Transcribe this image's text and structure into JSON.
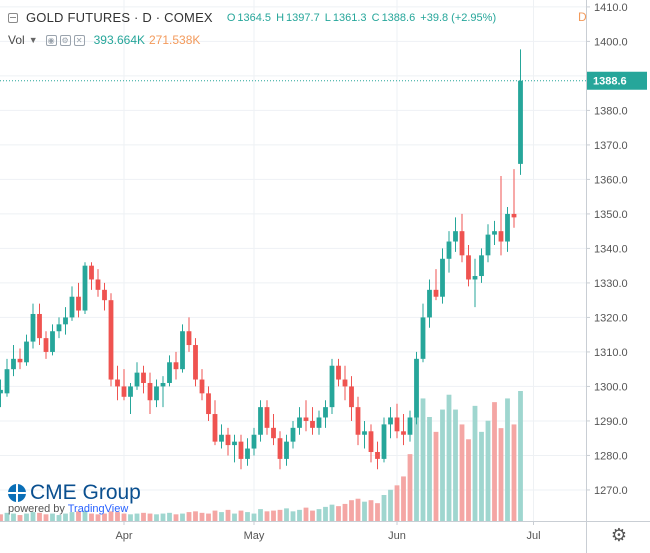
{
  "legend": {
    "symbol": "GOLD FUTURES · D · COMEX",
    "ohlc": {
      "open_label": "O",
      "open": "1364.5",
      "high_label": "H",
      "high": "1397.7",
      "low_label": "L",
      "low": "1361.3",
      "close_label": "C",
      "close": "1388.6",
      "change": "+39.8 (+2.95%)"
    },
    "volume": {
      "label": "Vol",
      "value_up": "393.664K",
      "value_down": "271.538K"
    },
    "interval_flag": "D"
  },
  "branding": {
    "logo": "CME Group",
    "powered_prefix": "powered by ",
    "powered_brand": "TradingView"
  },
  "colors": {
    "up": "#26a69a",
    "down": "#ef5350",
    "vol_up": "#9fd6cf",
    "vol_down": "#f4a6a4",
    "grid": "#eef1f4",
    "axis_text": "#555555",
    "last_price_bg": "#26a69a"
  },
  "icons": {
    "settings": "gear-icon",
    "menu": "hamburger-icon"
  },
  "chart_data": {
    "type": "candlestick",
    "x_tick_labels": [
      "Apr",
      "May",
      "Jun",
      "Jul"
    ],
    "x_ticks_at_index": [
      20,
      40,
      62,
      83
    ],
    "y_ticks": [
      1270,
      1280,
      1290,
      1300,
      1310,
      1320,
      1330,
      1340,
      1350,
      1360,
      1370,
      1380,
      1390,
      1400,
      1410
    ],
    "y_tick_labels": [
      "1270.0",
      "1280.0",
      "1290.0",
      "1300.0",
      "1310.0",
      "1320.0",
      "1330.0",
      "1340.0",
      "1350.0",
      "1360.0",
      "1370.0",
      "1380.0",
      "1390.0",
      "1400.0",
      "1410.0"
    ],
    "ylim": [
      1261,
      1412
    ],
    "last_price": 1388.6,
    "last_price_label": "1388.6",
    "series_ohlc": [
      [
        1300,
        1303,
        1296,
        1298
      ],
      [
        1298,
        1302,
        1294,
        1299
      ],
      [
        1298,
        1308,
        1297,
        1305
      ],
      [
        1305,
        1312,
        1303,
        1308
      ],
      [
        1308,
        1311,
        1305,
        1307
      ],
      [
        1307,
        1315,
        1306,
        1313
      ],
      [
        1313,
        1324,
        1311,
        1321
      ],
      [
        1321,
        1324,
        1312,
        1314
      ],
      [
        1314,
        1316,
        1308,
        1310
      ],
      [
        1310,
        1318,
        1309,
        1316
      ],
      [
        1316,
        1320,
        1314,
        1318
      ],
      [
        1318,
        1323,
        1315,
        1320
      ],
      [
        1320,
        1329,
        1319,
        1326
      ],
      [
        1326,
        1330,
        1320,
        1322
      ],
      [
        1322,
        1336,
        1321,
        1335
      ],
      [
        1335,
        1336,
        1328,
        1331
      ],
      [
        1331,
        1334,
        1326,
        1328
      ],
      [
        1328,
        1330,
        1322,
        1325
      ],
      [
        1325,
        1327,
        1300,
        1302
      ],
      [
        1302,
        1306,
        1296,
        1300
      ],
      [
        1300,
        1305,
        1296,
        1297
      ],
      [
        1297,
        1301,
        1292,
        1300
      ],
      [
        1300,
        1307,
        1299,
        1304
      ],
      [
        1304,
        1306,
        1298,
        1301
      ],
      [
        1301,
        1304,
        1292,
        1296
      ],
      [
        1296,
        1302,
        1294,
        1300
      ],
      [
        1300,
        1303,
        1294,
        1301
      ],
      [
        1301,
        1309,
        1300,
        1307
      ],
      [
        1307,
        1310,
        1302,
        1305
      ],
      [
        1305,
        1318,
        1304,
        1316
      ],
      [
        1316,
        1320,
        1310,
        1312
      ],
      [
        1312,
        1314,
        1300,
        1302
      ],
      [
        1302,
        1305,
        1296,
        1298
      ],
      [
        1298,
        1300,
        1290,
        1292
      ],
      [
        1292,
        1296,
        1283,
        1284
      ],
      [
        1284,
        1289,
        1282,
        1286
      ],
      [
        1286,
        1288,
        1280,
        1283
      ],
      [
        1283,
        1286,
        1278,
        1284
      ],
      [
        1284,
        1286,
        1276,
        1279
      ],
      [
        1279,
        1285,
        1277,
        1282
      ],
      [
        1282,
        1288,
        1280,
        1286
      ],
      [
        1286,
        1296,
        1284,
        1294
      ],
      [
        1294,
        1296,
        1286,
        1288
      ],
      [
        1288,
        1292,
        1283,
        1285
      ],
      [
        1285,
        1287,
        1276,
        1279
      ],
      [
        1279,
        1286,
        1277,
        1284
      ],
      [
        1284,
        1290,
        1282,
        1288
      ],
      [
        1288,
        1294,
        1286,
        1291
      ],
      [
        1291,
        1296,
        1287,
        1290
      ],
      [
        1290,
        1294,
        1286,
        1288
      ],
      [
        1288,
        1293,
        1286,
        1291
      ],
      [
        1291,
        1296,
        1288,
        1294
      ],
      [
        1294,
        1308,
        1292,
        1306
      ],
      [
        1306,
        1308,
        1300,
        1302
      ],
      [
        1302,
        1306,
        1296,
        1300
      ],
      [
        1300,
        1303,
        1290,
        1294
      ],
      [
        1294,
        1297,
        1283,
        1286
      ],
      [
        1286,
        1290,
        1282,
        1287
      ],
      [
        1287,
        1289,
        1278,
        1281
      ],
      [
        1281,
        1284,
        1276,
        1279
      ],
      [
        1279,
        1291,
        1278,
        1289
      ],
      [
        1289,
        1294,
        1285,
        1291
      ],
      [
        1291,
        1295,
        1285,
        1287
      ],
      [
        1287,
        1292,
        1283,
        1286
      ],
      [
        1286,
        1293,
        1284,
        1291
      ],
      [
        1291,
        1310,
        1289,
        1308
      ],
      [
        1308,
        1324,
        1307,
        1320
      ],
      [
        1320,
        1331,
        1317,
        1328
      ],
      [
        1328,
        1334,
        1325,
        1326
      ],
      [
        1326,
        1340,
        1324,
        1337
      ],
      [
        1337,
        1345,
        1333,
        1342
      ],
      [
        1342,
        1349,
        1339,
        1345
      ],
      [
        1345,
        1350,
        1336,
        1338
      ],
      [
        1338,
        1341,
        1329,
        1331
      ],
      [
        1331,
        1337,
        1323,
        1332
      ],
      [
        1332,
        1340,
        1330,
        1338
      ],
      [
        1338,
        1347,
        1336,
        1344
      ],
      [
        1344,
        1348,
        1341,
        1345
      ],
      [
        1345,
        1361,
        1338,
        1342
      ],
      [
        1342,
        1352,
        1339,
        1350
      ],
      [
        1350,
        1363,
        1346,
        1349
      ],
      [
        1364.5,
        1397.7,
        1361.3,
        1388.6
      ]
    ],
    "volume": [
      [
        1.0,
        0
      ],
      [
        0.9,
        1
      ],
      [
        1.1,
        0
      ],
      [
        1.0,
        0
      ],
      [
        0.8,
        1
      ],
      [
        1.0,
        0
      ],
      [
        1.2,
        0
      ],
      [
        1.1,
        1
      ],
      [
        0.9,
        1
      ],
      [
        1.0,
        0
      ],
      [
        0.8,
        0
      ],
      [
        1.0,
        0
      ],
      [
        1.2,
        0
      ],
      [
        1.3,
        1
      ],
      [
        1.4,
        0
      ],
      [
        1.0,
        1
      ],
      [
        0.9,
        1
      ],
      [
        1.0,
        1
      ],
      [
        1.3,
        1
      ],
      [
        1.2,
        1
      ],
      [
        1.0,
        1
      ],
      [
        0.9,
        0
      ],
      [
        1.0,
        0
      ],
      [
        1.1,
        1
      ],
      [
        1.0,
        1
      ],
      [
        0.9,
        0
      ],
      [
        1.0,
        0
      ],
      [
        1.1,
        0
      ],
      [
        0.9,
        1
      ],
      [
        1.0,
        0
      ],
      [
        1.2,
        1
      ],
      [
        1.3,
        1
      ],
      [
        1.1,
        1
      ],
      [
        1.0,
        1
      ],
      [
        1.4,
        1
      ],
      [
        1.2,
        0
      ],
      [
        1.5,
        1
      ],
      [
        1.0,
        0
      ],
      [
        1.4,
        1
      ],
      [
        1.2,
        0
      ],
      [
        1.0,
        0
      ],
      [
        1.6,
        0
      ],
      [
        1.3,
        1
      ],
      [
        1.4,
        1
      ],
      [
        1.5,
        1
      ],
      [
        1.7,
        0
      ],
      [
        1.3,
        0
      ],
      [
        1.5,
        0
      ],
      [
        1.8,
        1
      ],
      [
        1.4,
        1
      ],
      [
        1.6,
        0
      ],
      [
        1.9,
        0
      ],
      [
        2.2,
        0
      ],
      [
        2.0,
        1
      ],
      [
        2.3,
        1
      ],
      [
        2.8,
        1
      ],
      [
        3.0,
        1
      ],
      [
        2.6,
        0
      ],
      [
        2.8,
        1
      ],
      [
        2.4,
        1
      ],
      [
        3.5,
        0
      ],
      [
        4.2,
        0
      ],
      [
        4.8,
        1
      ],
      [
        6.0,
        1
      ],
      [
        9.0,
        1
      ],
      [
        14.0,
        0
      ],
      [
        16.5,
        0
      ],
      [
        14.0,
        0
      ],
      [
        12.0,
        1
      ],
      [
        15.0,
        0
      ],
      [
        17.0,
        0
      ],
      [
        15.0,
        0
      ],
      [
        13.0,
        1
      ],
      [
        11.0,
        1
      ],
      [
        15.5,
        0
      ],
      [
        12.0,
        0
      ],
      [
        13.5,
        0
      ],
      [
        16.0,
        1
      ],
      [
        12.5,
        1
      ],
      [
        16.5,
        0
      ],
      [
        13.0,
        1
      ],
      [
        17.5,
        0
      ]
    ]
  }
}
